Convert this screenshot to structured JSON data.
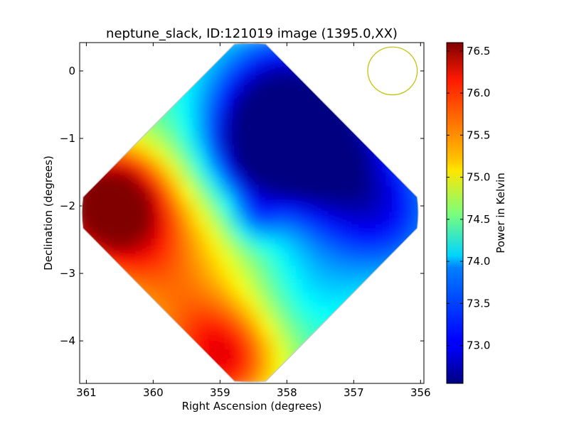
{
  "chart_data": {
    "type": "heatmap",
    "title": "neptune_slack, ID:121019 image (1395.0,XX)",
    "xlabel": "Right Ascension (degrees)",
    "ylabel": "Declination (degrees)",
    "xlim": [
      361.1,
      355.95
    ],
    "ylim": [
      -4.63,
      0.42
    ],
    "x_inverted": true,
    "x_ticks": [
      {
        "value": 361,
        "label": "361"
      },
      {
        "value": 360,
        "label": "360"
      },
      {
        "value": 359,
        "label": "359"
      },
      {
        "value": 358,
        "label": "358"
      },
      {
        "value": 357,
        "label": "357"
      },
      {
        "value": 356,
        "label": "356"
      }
    ],
    "y_ticks": [
      {
        "value": 0,
        "label": "0"
      },
      {
        "value": -1,
        "label": "−1"
      },
      {
        "value": -2,
        "label": "−2"
      },
      {
        "value": -3,
        "label": "−3"
      },
      {
        "value": -4,
        "label": "−4"
      }
    ],
    "footprint": {
      "shape": "rotated-square",
      "center": [
        358.55,
        -2.1
      ],
      "half_diagonal_deg": 2.5,
      "value_range": [
        72.55,
        76.6
      ],
      "features": [
        {
          "name": "hot-spot-left",
          "ra": 360.8,
          "dec": -1.85,
          "value": 76.6
        },
        {
          "name": "warm-bottom",
          "ra": 359.0,
          "dec": -4.2,
          "value": 75.9
        },
        {
          "name": "cold-top-right",
          "ra": 357.9,
          "dec": -0.6,
          "value": 72.55
        },
        {
          "name": "cool-right",
          "ra": 356.4,
          "dec": -2.1,
          "value": 73.4
        }
      ]
    },
    "beam_circle": {
      "ra": 356.42,
      "dec": 0.0,
      "radius_deg": 0.37,
      "color": "#bfbf00"
    },
    "colorbar": {
      "label": "Power in Kelvin",
      "range": [
        72.55,
        76.6
      ],
      "ticks": [
        {
          "value": 76.5,
          "label": "76.5"
        },
        {
          "value": 76.0,
          "label": "76.0"
        },
        {
          "value": 75.5,
          "label": "75.5"
        },
        {
          "value": 75.0,
          "label": "75.0"
        },
        {
          "value": 74.5,
          "label": "74.5"
        },
        {
          "value": 74.0,
          "label": "74.0"
        },
        {
          "value": 73.5,
          "label": "73.5"
        },
        {
          "value": 73.0,
          "label": "73.0"
        }
      ],
      "colormap": "jet"
    },
    "grid": false
  }
}
